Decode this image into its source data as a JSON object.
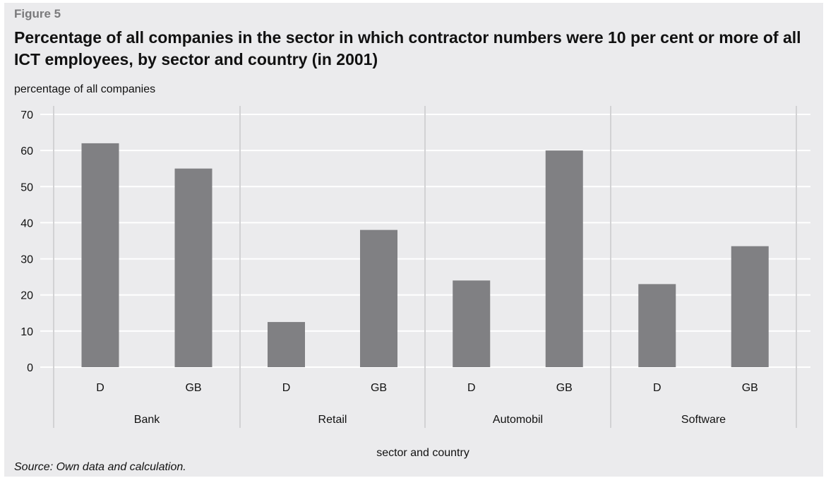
{
  "figure_label": "Figure 5",
  "title": "Percentage of all companies in the sector in which contractor numbers were 10 per cent or more of all ICT employees, by sector and country (in 2001)",
  "source": "Source: Own data and calculation.",
  "colors": {
    "bar": "#808083",
    "background": "#ebebed",
    "grid": "#ffffff",
    "divider": "#d2d2d4"
  },
  "chart_data": {
    "type": "bar",
    "ylabel": "percentage of all companies",
    "xlabel": "sector and country",
    "ylim": [
      0,
      70
    ],
    "yticks": [
      0,
      10,
      20,
      30,
      40,
      50,
      60,
      70
    ],
    "grid": "horizontal",
    "groups": [
      {
        "name": "Bank",
        "categories": [
          "D",
          "GB"
        ],
        "values": [
          62,
          55
        ]
      },
      {
        "name": "Retail",
        "categories": [
          "D",
          "GB"
        ],
        "values": [
          12.5,
          38
        ]
      },
      {
        "name": "Automobil",
        "categories": [
          "D",
          "GB"
        ],
        "values": [
          24,
          60
        ]
      },
      {
        "name": "Software",
        "categories": [
          "D",
          "GB"
        ],
        "values": [
          23,
          33.5
        ]
      }
    ]
  }
}
